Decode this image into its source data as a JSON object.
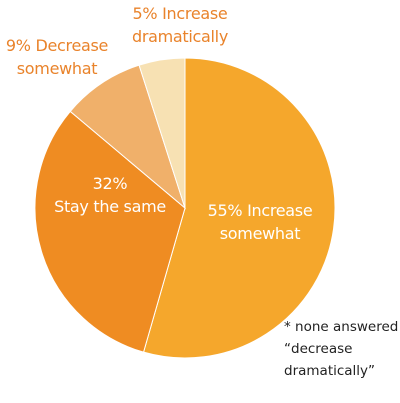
{
  "chart_data": {
    "type": "pie",
    "categories": [
      "Increase somewhat",
      "Stay the same",
      "Decrease somewhat",
      "Increase dramatically"
    ],
    "values": [
      55,
      32,
      9,
      5
    ],
    "value_labels": [
      "55%",
      "32%",
      "9%",
      "5%"
    ],
    "colors": [
      "#f5a72c",
      "#ef8c22",
      "#f0b06a",
      "#f7e1b3"
    ],
    "note": "* none answered “decrease dramatically”"
  }
}
